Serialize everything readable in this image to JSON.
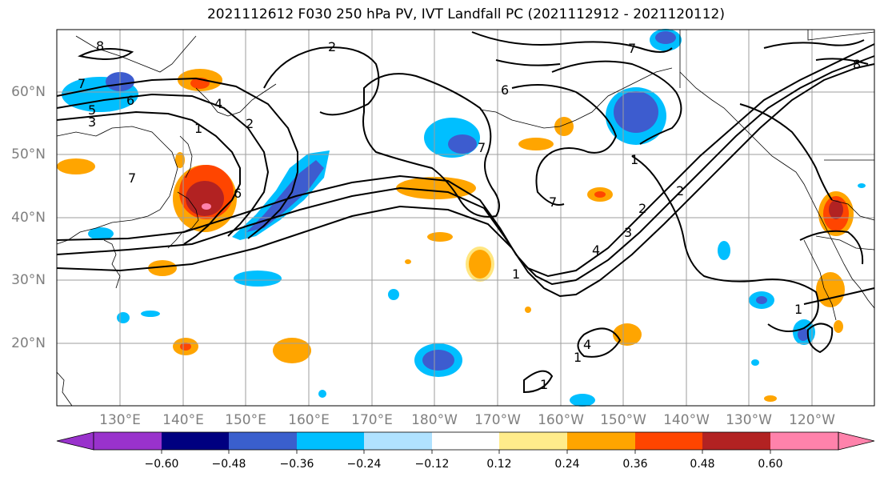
{
  "title": "2021112612 F030 250 hPa PV, IVT Landfall PC (2021112912 - 2021120112)",
  "map": {
    "lat_labels": [
      "60°N",
      "50°N",
      "40°N",
      "30°N",
      "20°N"
    ],
    "lon_labels": [
      "130°E",
      "140°E",
      "150°E",
      "160°E",
      "170°E",
      "180°W",
      "170°W",
      "160°W",
      "150°W",
      "140°W",
      "130°W",
      "120°W"
    ],
    "contour_labels": [
      "8",
      "7",
      "6",
      "5",
      "3",
      "2",
      "4",
      "7",
      "2",
      "6",
      "7",
      "6",
      "2",
      "1",
      "7",
      "4",
      "1",
      "2",
      "3",
      "4",
      "1",
      "1",
      "1",
      "1",
      "8",
      "7"
    ],
    "colors": {
      "grid": "#9e9e9e",
      "contour": "#000000",
      "positive_strong": "#b22222",
      "positive_mid": "#ff4500",
      "positive_weak": "#ffa500",
      "positive_faint": "#ffe680",
      "negative_strong": "#3d5ccf",
      "negative_mid": "#00bfff",
      "negative_faint": "#b0e0ff"
    }
  },
  "colorbar": {
    "segment_colors": [
      "#9932cc",
      "#000080",
      "#3a5fcd",
      "#00bfff",
      "#b0e2ff",
      "#ffffff",
      "#ffec8b",
      "#ffa500",
      "#ff4500",
      "#b22222",
      "#ff82ab"
    ],
    "tick_labels": [
      "−0.60",
      "−0.48",
      "−0.36",
      "−0.24",
      "−0.12",
      "0.12",
      "0.24",
      "0.36",
      "0.48",
      "0.60"
    ]
  }
}
